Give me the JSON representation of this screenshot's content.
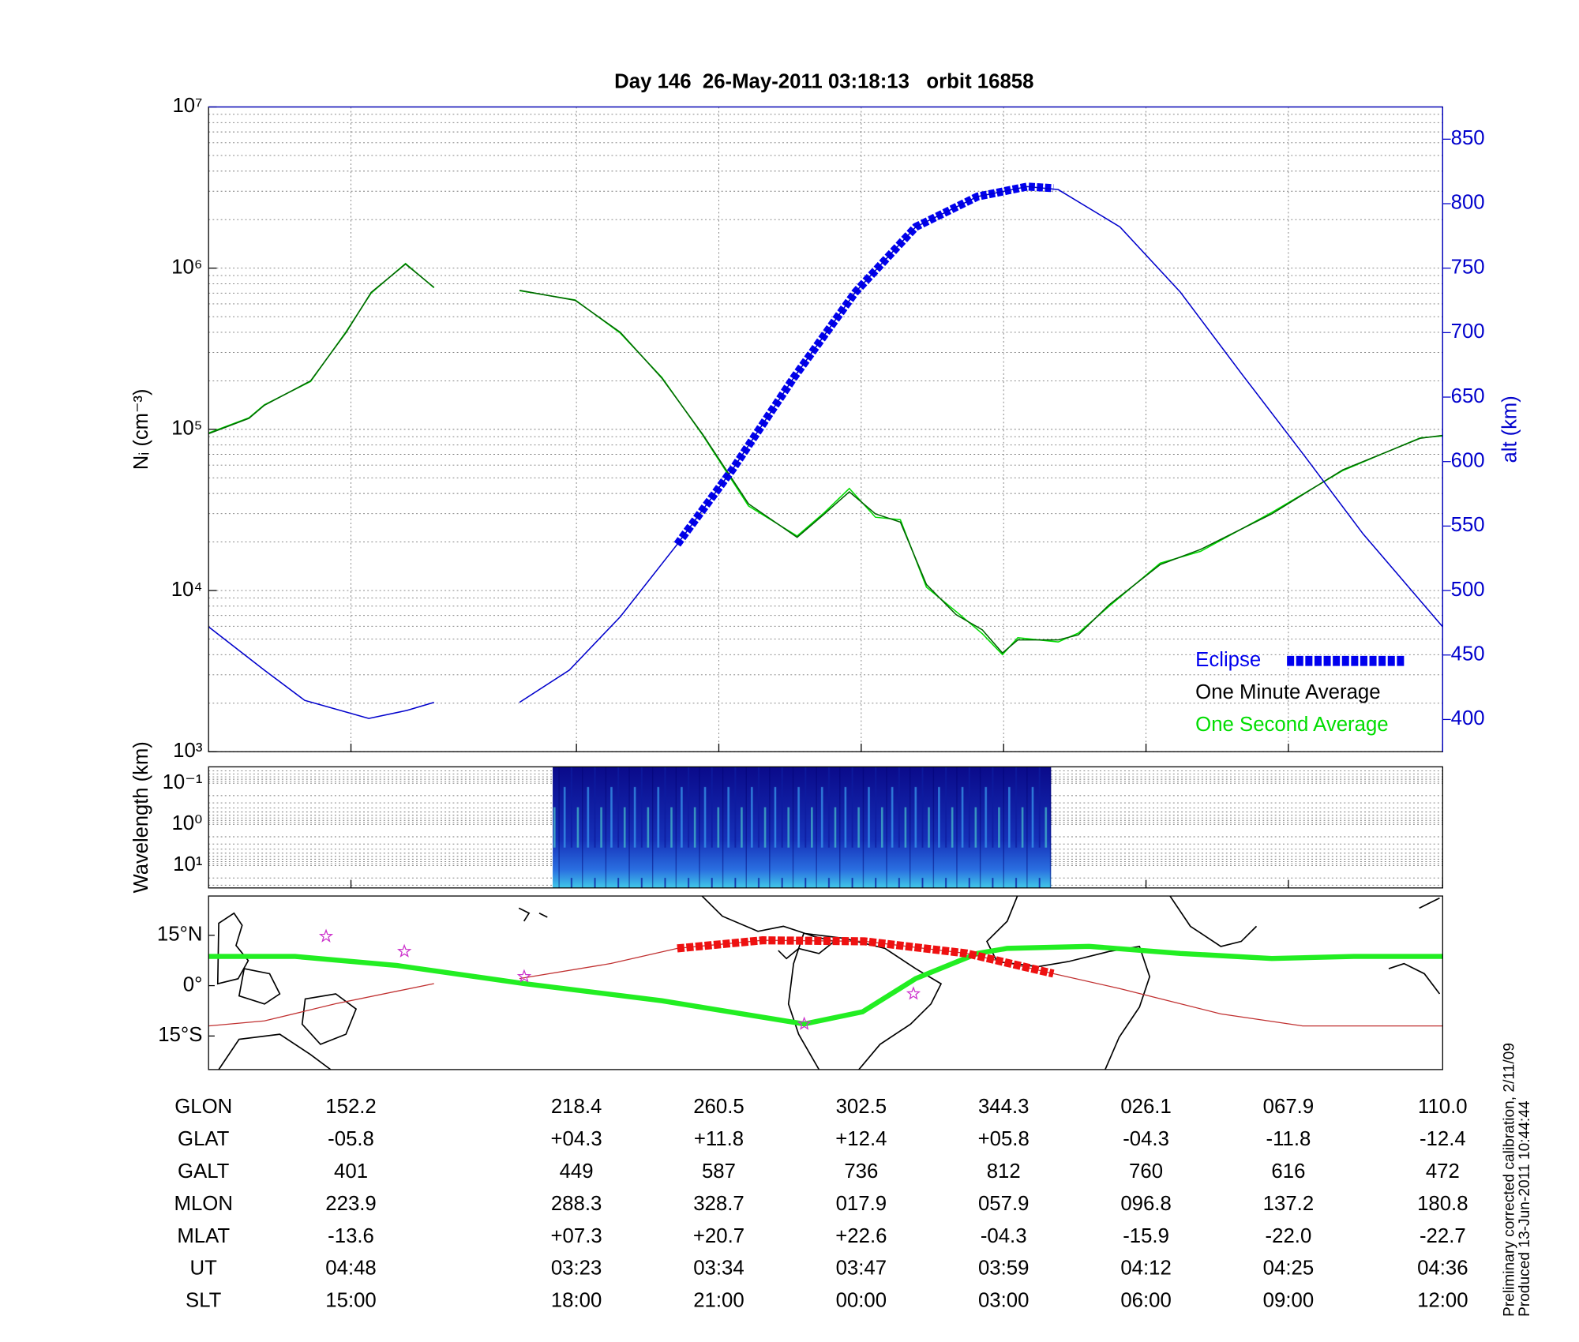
{
  "chart_data": [
    {
      "type": "line",
      "title": "Day 146  26-May-2011 03:18:13   orbit 16858",
      "ylabel": "Nᵢ (cm⁻³)",
      "y2label": "alt (km)",
      "yscale": "log",
      "xlim": [
        172,
        276
      ],
      "xticks": [
        184,
        203,
        215,
        227,
        239,
        251,
        263,
        276
      ],
      "ylim": [
        1000,
        10000000
      ],
      "yticks": [
        {
          "value": 1000,
          "label": "10³"
        },
        {
          "value": 10000,
          "label": "10⁴"
        },
        {
          "value": 100000,
          "label": "10⁵"
        },
        {
          "value": 1000000,
          "label": "10⁶"
        },
        {
          "value": 10000000,
          "label": "10⁷"
        }
      ],
      "y2lim": [
        375,
        875
      ],
      "y2ticks": [
        400,
        450,
        500,
        550,
        600,
        650,
        700,
        750,
        800,
        850
      ],
      "grid": true,
      "legend": "lower right",
      "series": [
        {
          "name": "One Second Average",
          "color": "#00dd00",
          "label_color": "#00dd00",
          "x": [
            172,
            175.4,
            176.7,
            180.6,
            183.6,
            185.7,
            188.6,
            191,
            194.6,
            198.2,
            202.9,
            206.7,
            210.2,
            213.6,
            217.5,
            221.6,
            223.9,
            226,
            228.2,
            230.3,
            232.5,
            235,
            237.2,
            238.9,
            240.2,
            243.6,
            245.3,
            247.9,
            252.2,
            255.6,
            261.6,
            267.6,
            274.1,
            276
          ],
          "values": [
            95000,
            118000,
            142000,
            198000,
            405000,
            700000,
            1070000,
            755000,
            null,
            725000,
            635000,
            395000,
            210000,
            93000,
            33500,
            21800,
            30500,
            43000,
            28500,
            27500,
            10500,
            7400,
            5400,
            4000,
            5100,
            4800,
            5450,
            8000,
            14800,
            17500,
            30500,
            55500,
            88500,
            91000
          ]
        },
        {
          "name": "One Minute Average",
          "color": "#006400",
          "label_color": "#000000",
          "x": [
            172,
            175.4,
            176.7,
            180.6,
            183.6,
            185.7,
            188.6,
            191,
            194.6,
            198.2,
            202.9,
            206.7,
            210.2,
            213.6,
            217.5,
            221.6,
            223.9,
            226,
            228.2,
            230.3,
            232.5,
            235,
            237.2,
            238.9,
            240.2,
            243.6,
            245.3,
            247.9,
            252.2,
            255.6,
            261.6,
            267.6,
            274.1,
            276
          ],
          "values": [
            94000,
            117000,
            141000,
            200000,
            400000,
            707000,
            1060000,
            760000,
            null,
            729000,
            631000,
            400000,
            208000,
            94000,
            34500,
            21400,
            29900,
            41000,
            29900,
            26600,
            10900,
            7080,
            5700,
            4100,
            4940,
            4940,
            5310,
            8170,
            14500,
            18000,
            29900,
            56200,
            87900,
            91700
          ]
        },
        {
          "name": "Eclipse",
          "color": "#0000ee",
          "label_color": "#0000ee",
          "axis": "y2",
          "dash": true,
          "x": [
            211.5,
            216.2,
            221.3,
            226.5,
            231.6,
            236.8,
            241,
            243.2
          ],
          "values": [
            535.9,
            594.5,
            664.8,
            731.3,
            782,
            805.5,
            813.3,
            812
          ]
        },
        {
          "color": "#0000cc",
          "axis": "y2",
          "x": [
            172,
            176.7,
            180.1,
            185.5,
            188.7,
            191,
            194.6,
            198.2,
            202.4,
            206.7,
            211.5,
            216.2,
            221.3,
            226.5,
            231.6,
            236.8,
            241,
            243.6,
            248.8,
            253.9,
            259,
            264.2,
            269.3,
            276
          ],
          "values": [
            471.9,
            438.3,
            414.8,
            400.8,
            407,
            413.3,
            null,
            413.3,
            438.3,
            479.7,
            535.9,
            594.5,
            664.8,
            731.3,
            782,
            805.5,
            813.3,
            810.9,
            782,
            731.3,
            668.8,
            606.3,
            543.8,
            471.9
          ]
        }
      ]
    },
    {
      "type": "spectrogram",
      "ylabel": "Wavelength (km)",
      "yscale": "log",
      "xlim": [
        172,
        276
      ],
      "xticks": [
        184,
        203,
        215,
        227,
        239,
        251,
        263,
        276
      ],
      "ylim": [
        35,
        0.04
      ],
      "yticks": [
        {
          "value": 0.1,
          "label": "10⁻¹"
        },
        {
          "value": 1,
          "label": "10⁰"
        },
        {
          "value": 10,
          "label": "10¹"
        }
      ],
      "extent": [
        201,
        243
      ]
    },
    {
      "type": "map",
      "xlim": [
        172,
        276
      ],
      "ylim": [
        -25,
        26.7
      ],
      "yticks": [
        {
          "value": -15,
          "label": "15°S"
        },
        {
          "value": 0,
          "label": "0°"
        },
        {
          "value": 15,
          "label": "15°N"
        }
      ],
      "series": [
        {
          "color": "#22ee22",
          "width": 5,
          "x": [
            172,
            179.3,
            187.9,
            198.6,
            210.2,
            222.2,
            227.1,
            231.6,
            236.8,
            239.3,
            246.2,
            253.9,
            261.6,
            268.5,
            276
          ],
          "values": [
            8.7,
            8.7,
            6,
            0.6,
            -4.5,
            -11.4,
            -7.8,
            2.1,
            9.6,
            11.1,
            11.7,
            9.6,
            8.1,
            8.7,
            8.7
          ]
        },
        {
          "color": "#c03030",
          "width": 1,
          "x": [
            172,
            176.7,
            182.7,
            191,
            194.6,
            198.2,
            205.9,
            211.5,
            218.7,
            227.3,
            235.9,
            243.2,
            248.8,
            257.3,
            264.2,
            276
          ],
          "values": [
            -12,
            -10.5,
            -5.4,
            0.6,
            null,
            2.1,
            6.6,
            11.1,
            13.5,
            13.2,
            9.6,
            3.6,
            -0.9,
            -8.4,
            -12,
            -12
          ]
        },
        {
          "color": "#ee1111",
          "width": 8,
          "dash": true,
          "x": [
            211.5,
            218.7,
            227.3,
            235.9,
            243.2
          ],
          "values": [
            11.1,
            13.5,
            13.2,
            9.6,
            3.6
          ]
        },
        {
          "color": "#cc33cc",
          "marker": "star",
          "x": [
            181.9,
            188.5,
            198.6,
            222.2,
            231.4
          ],
          "values": [
            14.7,
            10.2,
            2.7,
            -11.4,
            -2.4
          ]
        }
      ]
    }
  ],
  "ephemeris": {
    "rows": [
      {
        "label": "GLON",
        "values": [
          "152.2",
          "218.4",
          "260.5",
          "302.5",
          "344.3",
          "026.1",
          "067.9",
          "110.0"
        ]
      },
      {
        "label": "GLAT",
        "values": [
          "-05.8",
          "+04.3",
          "+11.8",
          "+12.4",
          "+05.8",
          "-04.3",
          "-11.8",
          "-12.4"
        ]
      },
      {
        "label": "GALT",
        "values": [
          "401",
          "449",
          "587",
          "736",
          "812",
          "760",
          "616",
          "472"
        ]
      },
      {
        "label": "MLON",
        "values": [
          "223.9",
          "288.3",
          "328.7",
          "017.9",
          "057.9",
          "096.8",
          "137.2",
          "180.8"
        ]
      },
      {
        "label": "MLAT",
        "values": [
          "-13.6",
          "+07.3",
          "+20.7",
          "+22.6",
          "-04.3",
          "-15.9",
          "-22.0",
          "-22.7"
        ]
      },
      {
        "label": "UT",
        "values": [
          "04:48",
          "03:23",
          "03:34",
          "03:47",
          "03:59",
          "04:12",
          "04:25",
          "04:36"
        ]
      },
      {
        "label": "SLT",
        "values": [
          "15:00",
          "18:00",
          "21:00",
          "00:00",
          "03:00",
          "06:00",
          "09:00",
          "12:00"
        ]
      }
    ]
  },
  "notes": [
    "Preliminary corrected calibration, 2/11/09",
    "Produced 13-Jun-2011 10:44:44"
  ]
}
